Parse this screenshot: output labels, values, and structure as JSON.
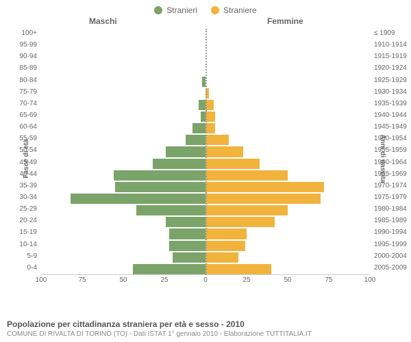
{
  "legend": {
    "male": {
      "label": "Stranieri",
      "color": "#7aa469"
    },
    "female": {
      "label": "Straniere",
      "color": "#f2b33d"
    }
  },
  "headers": {
    "male": "Maschi",
    "female": "Femmine"
  },
  "axes": {
    "left_label": "Fasce di età",
    "right_label": "Anni di nascita",
    "xmax": 100,
    "xticks": [
      100,
      75,
      50,
      25,
      0,
      25,
      50,
      75,
      100
    ]
  },
  "colors": {
    "male_bar": "#7aa469",
    "female_bar": "#f2b33d",
    "grid": "#cccccc",
    "text": "#666666",
    "bg": "#ffffff"
  },
  "rows": [
    {
      "age": "100+",
      "birth": "≤ 1909",
      "m": 0,
      "f": 0
    },
    {
      "age": "95-99",
      "birth": "1910-1914",
      "m": 0,
      "f": 0
    },
    {
      "age": "90-94",
      "birth": "1915-1919",
      "m": 0,
      "f": 0
    },
    {
      "age": "85-89",
      "birth": "1920-1924",
      "m": 0,
      "f": 0
    },
    {
      "age": "80-84",
      "birth": "1925-1929",
      "m": 2,
      "f": 0
    },
    {
      "age": "75-79",
      "birth": "1930-1934",
      "m": 0,
      "f": 2
    },
    {
      "age": "70-74",
      "birth": "1935-1939",
      "m": 4,
      "f": 5
    },
    {
      "age": "65-69",
      "birth": "1940-1944",
      "m": 3,
      "f": 6
    },
    {
      "age": "60-64",
      "birth": "1945-1949",
      "m": 8,
      "f": 6
    },
    {
      "age": "55-59",
      "birth": "1950-1954",
      "m": 12,
      "f": 14
    },
    {
      "age": "50-54",
      "birth": "1955-1959",
      "m": 24,
      "f": 23
    },
    {
      "age": "45-49",
      "birth": "1960-1964",
      "m": 32,
      "f": 33
    },
    {
      "age": "40-44",
      "birth": "1965-1969",
      "m": 56,
      "f": 50
    },
    {
      "age": "35-39",
      "birth": "1970-1974",
      "m": 55,
      "f": 72
    },
    {
      "age": "30-34",
      "birth": "1975-1979",
      "m": 82,
      "f": 70
    },
    {
      "age": "25-29",
      "birth": "1980-1984",
      "m": 42,
      "f": 50
    },
    {
      "age": "20-24",
      "birth": "1985-1989",
      "m": 24,
      "f": 42
    },
    {
      "age": "15-19",
      "birth": "1990-1994",
      "m": 22,
      "f": 25
    },
    {
      "age": "10-14",
      "birth": "1995-1999",
      "m": 22,
      "f": 24
    },
    {
      "age": "5-9",
      "birth": "2000-2004",
      "m": 20,
      "f": 20
    },
    {
      "age": "0-4",
      "birth": "2005-2009",
      "m": 44,
      "f": 40
    }
  ],
  "footer": {
    "title": "Popolazione per cittadinanza straniera per età e sesso - 2010",
    "subtitle": "COMUNE DI RIVALTA DI TORINO (TO) - Dati ISTAT 1° gennaio 2010 - Elaborazione TUTTITALIA.IT"
  }
}
